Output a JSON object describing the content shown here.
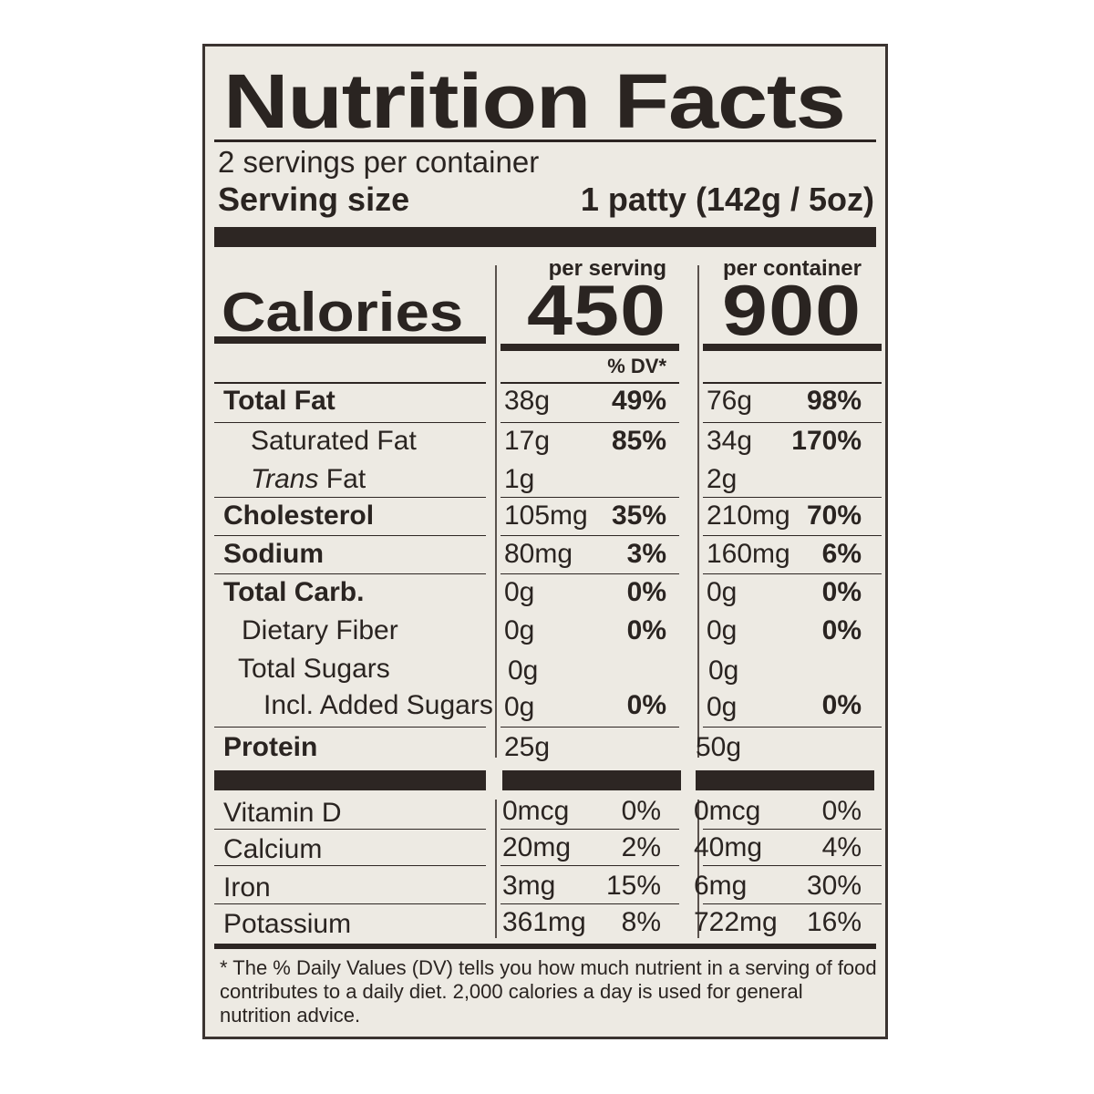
{
  "title": "Nutrition Facts",
  "servings_per_container": "2 servings per container",
  "serving_size_label": "Serving size",
  "serving_size_value": "1 patty (142g / 5oz)",
  "column_headers": {
    "per_serving": "per serving",
    "per_container": "per container"
  },
  "calories": {
    "label": "Calories",
    "per_serving": "450",
    "per_container": "900"
  },
  "dv_header": "% DV*",
  "nutrients": [
    {
      "name": "Total Fat",
      "serving_amount": "38g",
      "serving_dv": "49%",
      "container_amount": "76g",
      "container_dv": "98%"
    },
    {
      "name": "Saturated Fat",
      "serving_amount": "17g",
      "serving_dv": "85%",
      "container_amount": "34g",
      "container_dv": "170%"
    },
    {
      "name_italic": "Trans",
      "name_rest": " Fat",
      "serving_amount": "1g",
      "serving_dv": "",
      "container_amount": "2g",
      "container_dv": ""
    },
    {
      "name": "Cholesterol",
      "serving_amount": "105mg",
      "serving_dv": "35%",
      "container_amount": "210mg",
      "container_dv": "70%"
    },
    {
      "name": "Sodium",
      "serving_amount": "80mg",
      "serving_dv": "3%",
      "container_amount": "160mg",
      "container_dv": "6%"
    },
    {
      "name": "Total Carb.",
      "serving_amount": "0g",
      "serving_dv": "0%",
      "container_amount": "0g",
      "container_dv": "0%"
    },
    {
      "name": "Dietary Fiber",
      "serving_amount": "0g",
      "serving_dv": "0%",
      "container_amount": "0g",
      "container_dv": "0%"
    },
    {
      "name": "Total Sugars",
      "serving_amount": "0g",
      "serving_dv": "",
      "container_amount": "0g",
      "container_dv": ""
    },
    {
      "name": "Incl. Added Sugars",
      "serving_amount": "0g",
      "serving_dv": "0%",
      "container_amount": "0g",
      "container_dv": "0%"
    },
    {
      "name": "Protein",
      "serving_amount": "25g",
      "serving_dv": "",
      "container_amount": "50g",
      "container_dv": ""
    }
  ],
  "vitamins": [
    {
      "name": "Vitamin D",
      "serving_amount": "0mcg",
      "serving_dv": "0%",
      "container_amount": "0mcg",
      "container_dv": "0%"
    },
    {
      "name": "Calcium",
      "serving_amount": "20mg",
      "serving_dv": "2%",
      "container_amount": "40mg",
      "container_dv": "4%"
    },
    {
      "name": "Iron",
      "serving_amount": "3mg",
      "serving_dv": "15%",
      "container_amount": "6mg",
      "container_dv": "30%"
    },
    {
      "name": "Potassium",
      "serving_amount": "361mg",
      "serving_dv": "8%",
      "container_amount": "722mg",
      "container_dv": "16%"
    }
  ],
  "footnote": "* The % Daily Values (DV) tells you how much nutrient in a serving of food contributes to a daily diet. 2,000 calories a day is used for general nutrition advice."
}
